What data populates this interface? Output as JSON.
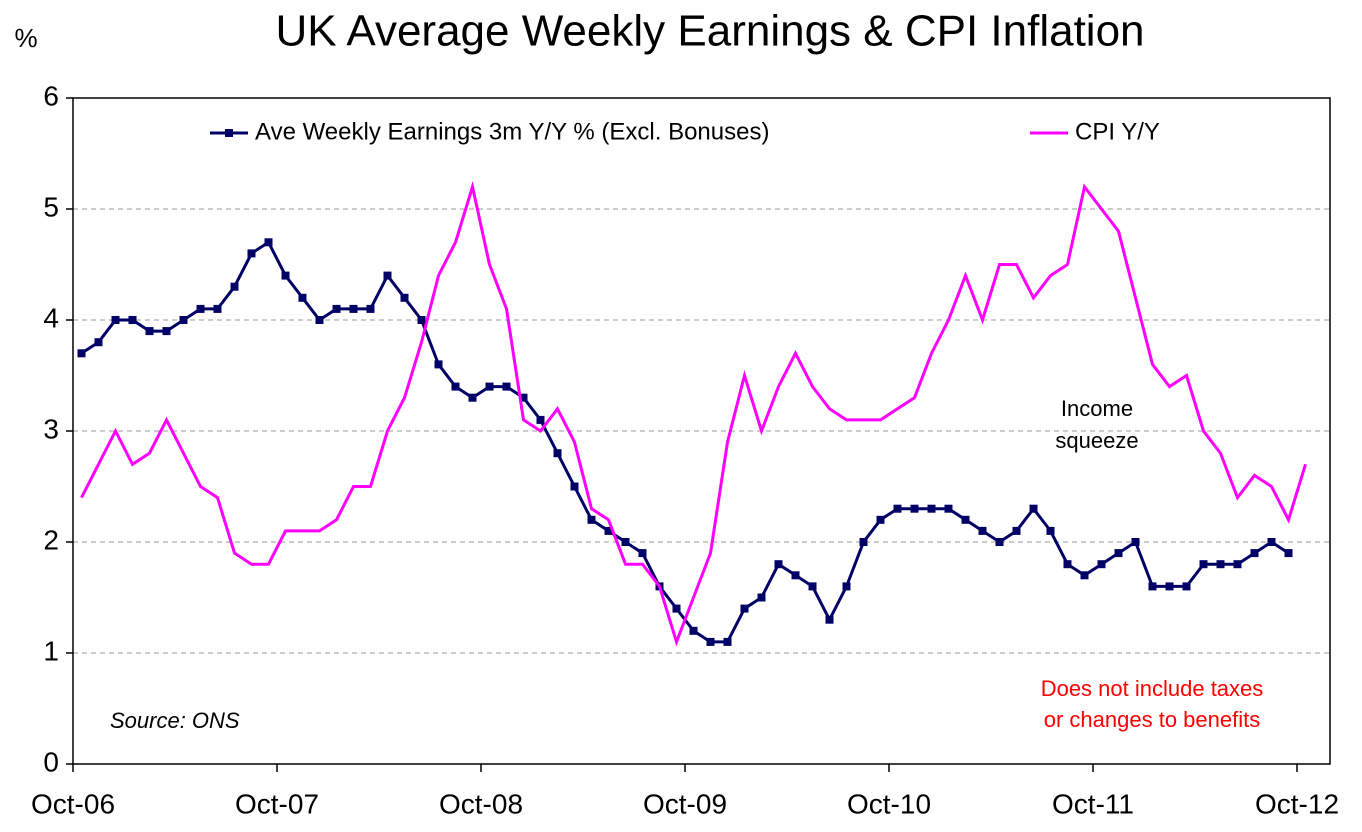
{
  "chart_data": {
    "type": "line",
    "title": "UK Average Weekly Earnings & CPI Inflation",
    "ylabel": "%",
    "categories": [
      "Oct-06",
      null,
      null,
      null,
      null,
      null,
      null,
      null,
      null,
      null,
      null,
      null,
      "Oct-07",
      null,
      null,
      null,
      null,
      null,
      null,
      null,
      null,
      null,
      null,
      null,
      "Oct-08",
      null,
      null,
      null,
      null,
      null,
      null,
      null,
      null,
      null,
      null,
      null,
      "Oct-09",
      null,
      null,
      null,
      null,
      null,
      null,
      null,
      null,
      null,
      null,
      null,
      "Oct-10",
      null,
      null,
      null,
      null,
      null,
      null,
      null,
      null,
      null,
      null,
      null,
      "Oct-11",
      null,
      null,
      null,
      null,
      null,
      null,
      null,
      null,
      null,
      null,
      null,
      "Oct-12"
    ],
    "series": [
      {
        "name": "Ave Weekly Earnings 3m Y/Y % (Excl. Bonuses)",
        "color": "#000066",
        "marker": "square",
        "values": [
          3.7,
          3.8,
          4.0,
          4.0,
          3.9,
          3.9,
          4.0,
          4.1,
          4.1,
          4.3,
          4.6,
          4.7,
          4.4,
          4.2,
          4.0,
          4.1,
          4.1,
          4.1,
          4.4,
          4.2,
          4.0,
          3.6,
          3.4,
          3.3,
          3.4,
          3.4,
          3.3,
          3.1,
          2.8,
          2.5,
          2.2,
          2.1,
          2.0,
          1.9,
          1.6,
          1.4,
          1.2,
          1.1,
          1.1,
          1.4,
          1.5,
          1.8,
          1.7,
          1.6,
          1.3,
          1.6,
          2.0,
          2.2,
          2.3,
          2.3,
          2.3,
          2.3,
          2.2,
          2.1,
          2.0,
          2.1,
          2.3,
          2.1,
          1.8,
          1.7,
          1.8,
          1.9,
          2.0,
          1.6,
          1.6,
          1.6,
          1.8,
          1.8,
          1.8,
          1.9,
          2.0,
          1.9,
          null
        ]
      },
      {
        "name": "CPI Y/Y",
        "color": "#ff00ff",
        "values": [
          2.4,
          2.7,
          3.0,
          2.7,
          2.8,
          3.1,
          2.8,
          2.5,
          2.4,
          1.9,
          1.8,
          1.8,
          2.1,
          2.1,
          2.1,
          2.2,
          2.5,
          2.5,
          3.0,
          3.3,
          3.8,
          4.4,
          4.7,
          5.2,
          4.5,
          4.1,
          3.1,
          3.0,
          3.2,
          2.9,
          2.3,
          2.2,
          1.8,
          1.8,
          1.6,
          1.1,
          1.5,
          1.9,
          2.9,
          3.5,
          3.0,
          3.4,
          3.7,
          3.4,
          3.2,
          3.1,
          3.1,
          3.1,
          3.2,
          3.3,
          3.7,
          4.0,
          4.4,
          4.0,
          4.5,
          4.5,
          4.2,
          4.4,
          4.5,
          5.2,
          5.0,
          4.8,
          4.2,
          3.6,
          3.4,
          3.5,
          3.0,
          2.8,
          2.4,
          2.6,
          2.5,
          2.2,
          2.7
        ]
      }
    ],
    "ylim": [
      0,
      6
    ],
    "yticks": [
      0,
      1,
      2,
      3,
      4,
      5,
      6
    ],
    "grid": true,
    "legend": "top",
    "annotations": [
      {
        "lines": [
          "Income",
          "squeeze"
        ],
        "color": "#000000"
      },
      {
        "lines": [
          "Does not include taxes",
          "or changes to benefits"
        ],
        "color": "#ff0000"
      },
      {
        "lines": [
          "Source: ONS"
        ],
        "color": "#000000",
        "style": "italic"
      }
    ]
  }
}
